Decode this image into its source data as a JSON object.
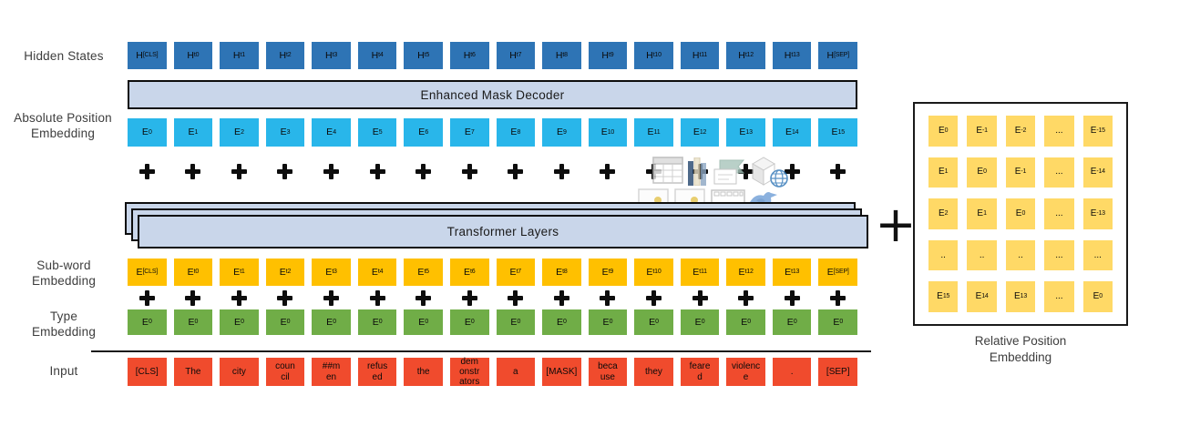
{
  "colors": {
    "hidden_box": "#2e74b5",
    "absolute_box": "#29b6ea",
    "subword_box": "#ffc000",
    "type_box": "#70ad47",
    "input_box": "#f04b2d",
    "matrix_box": "#ffd966",
    "bar_fill": "#c9d6ea"
  },
  "side_labels": {
    "hidden_states": "Hidden States",
    "absolute_position_line1": "Absolute Position",
    "absolute_position_line2": "Embedding",
    "sub_word_line1": "Sub-word",
    "sub_word_line2": "Embedding",
    "type_line1": "Type",
    "type_line2": "Embedding",
    "input": "Input"
  },
  "bars": {
    "enhanced_mask_decoder": "Enhanced Mask Decoder",
    "transformer_layers": "Transformer Layers"
  },
  "plus_count": 16,
  "big_plus": "+",
  "rows": {
    "hidden_states": [
      "H_[CLS]",
      "H_t0",
      "H_t1",
      "H_t2",
      "H_t3",
      "H_t4",
      "H_t5",
      "H_t6",
      "H_t7",
      "H_t8",
      "H_t9",
      "H_t10",
      "H_t11",
      "H_t12",
      "H_t13",
      "H_[SEP]"
    ],
    "absolute_position": [
      "E_0",
      "E_1",
      "E_2",
      "E_3",
      "E_4",
      "E_5",
      "E_6",
      "E_7",
      "E_8",
      "E_9",
      "E_10",
      "E_11",
      "E_12",
      "E_13",
      "E_14",
      "E_15"
    ],
    "sub_word": [
      "E_[CLS]",
      "E_t0",
      "E_t1",
      "E_t2",
      "E_t3",
      "E_t4",
      "E_t5",
      "E_t6",
      "E_t7",
      "E_t8",
      "E_t9",
      "E_t10",
      "E_t11",
      "E_t12",
      "E_t13",
      "E_[SEP]"
    ],
    "type": [
      "E_0",
      "E_0",
      "E_0",
      "E_0",
      "E_0",
      "E_0",
      "E_0",
      "E_0",
      "E_0",
      "E_0",
      "E_0",
      "E_0",
      "E_0",
      "E_0",
      "E_0",
      "E_0"
    ],
    "input": [
      "[CLS]",
      "The",
      "city",
      "coun\ncil",
      "##m\nen",
      "refus\ned",
      "the",
      "dem\nonstr\nators",
      "a",
      "[MASK]",
      "beca\nuse",
      "they",
      "feare\nd",
      "violenc\ne",
      ".",
      "[SEP]"
    ]
  },
  "relative_matrix": {
    "rows": [
      [
        "E_0",
        "E_-1",
        "E_-2",
        "...",
        "E_-15"
      ],
      [
        "E_1",
        "E_0",
        "E_-1",
        "...",
        "E_-14"
      ],
      [
        "E_2",
        "E_1",
        "E_0",
        "...",
        "E_-13"
      ],
      [
        "..",
        "..",
        "..",
        "...",
        "..."
      ],
      [
        "E_15",
        "E_14",
        "E_13",
        "...",
        "E_0"
      ]
    ],
    "label_line1": "Relative Position",
    "label_line2": "Embedding"
  },
  "watermark_icons": [
    "spreadsheet-icon",
    "books-icon",
    "clipped-note-icon",
    "cube-globe-icon",
    "card-icon",
    "card-icon",
    "filmstrip-icon",
    "bird-icon"
  ]
}
